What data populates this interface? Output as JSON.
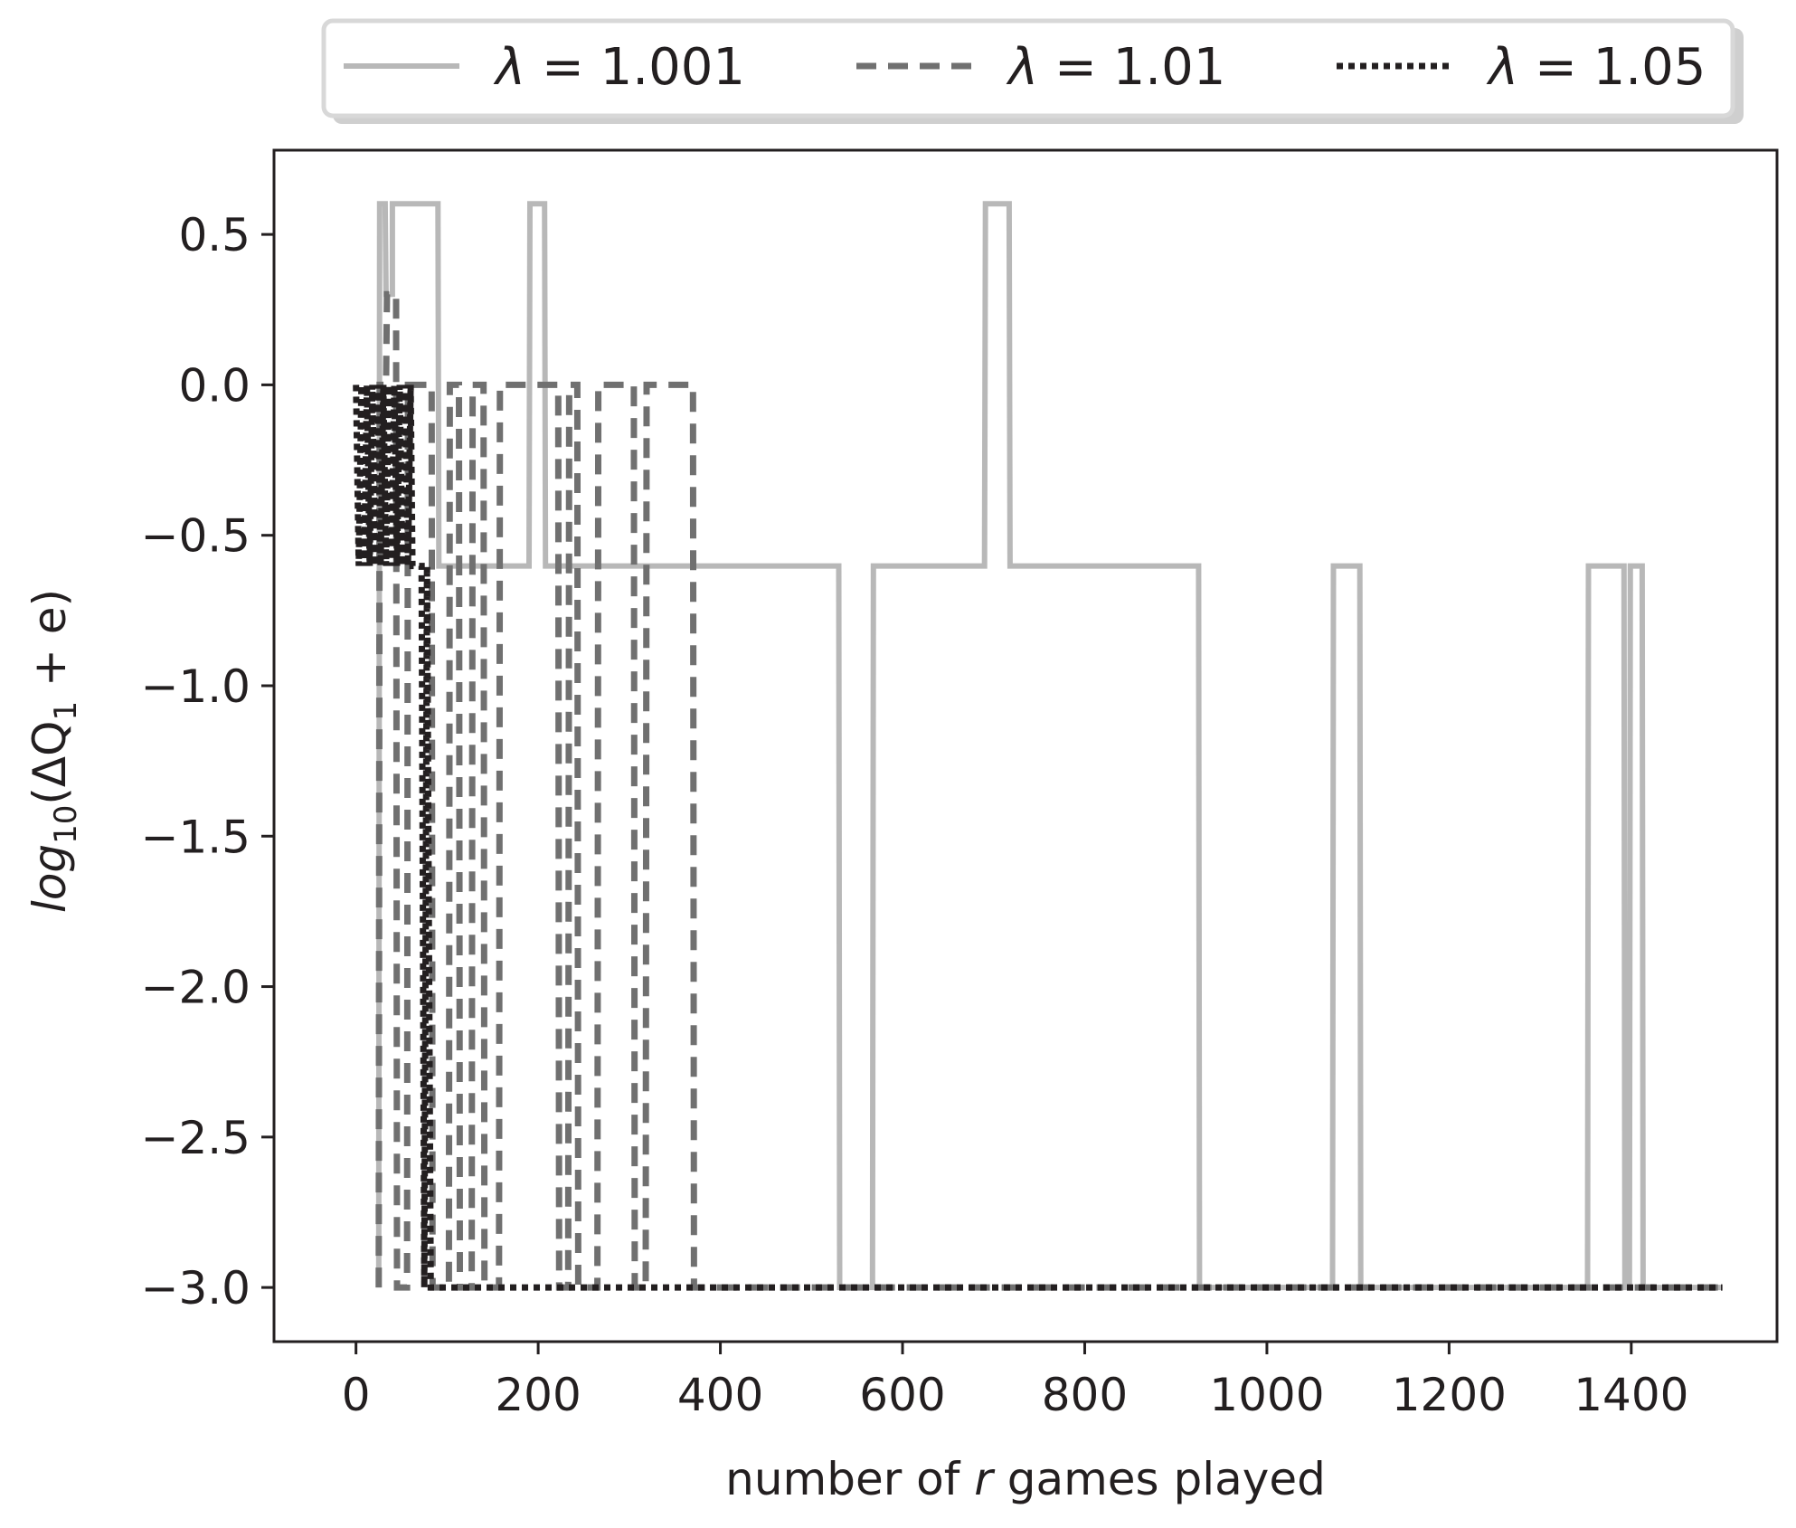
{
  "chart_data": {
    "type": "line",
    "xlabel": "number of r games played",
    "xlabel_parts": {
      "before": "number of ",
      "italic": "r",
      "after": " games played"
    },
    "ylabel": "log10(ΔQ1 + e)",
    "ylabel_parts": {
      "base": "log",
      "base_sub": "10",
      "open": "(ΔQ",
      "q_sub": "1",
      "close": " + e)"
    },
    "xlim": [
      -90,
      1560
    ],
    "ylim": [
      -3.18,
      0.78
    ],
    "xticks": [
      0,
      200,
      400,
      600,
      800,
      1000,
      1200,
      1400
    ],
    "xtick_labels": [
      "0",
      "200",
      "400",
      "600",
      "800",
      "1000",
      "1200",
      "1400"
    ],
    "yticks": [
      0.5,
      0.0,
      -0.5,
      -1.0,
      -1.5,
      -2.0,
      -2.5,
      -3.0
    ],
    "ytick_labels": [
      "0.5",
      "0.0",
      "−0.5",
      "−1.0",
      "−1.5",
      "−2.0",
      "−2.5",
      "−3.0"
    ],
    "grid": false,
    "legend_position": "top, outside plot, single row",
    "series": [
      {
        "name": "λ = 1.001",
        "label_symbol": "λ",
        "label_value": "1.001",
        "color": "#b8b8b8",
        "style": "solid",
        "x": [
          25,
          26,
          32,
          33,
          40,
          40,
          45,
          46,
          90,
          91,
          190,
          191,
          207,
          208,
          530,
          531,
          567,
          568,
          690,
          691,
          717,
          718,
          925,
          926,
          1072,
          1073,
          1102,
          1103,
          1352,
          1353,
          1392,
          1393,
          1398,
          1399,
          1412,
          1413,
          1500
        ],
        "y": [
          -3.0,
          0.602,
          0.602,
          0.301,
          0.301,
          0.602,
          0.602,
          0.602,
          0.602,
          -0.602,
          -0.602,
          0.602,
          0.602,
          -0.602,
          -0.602,
          -3.0,
          -3.0,
          -0.602,
          -0.602,
          0.602,
          0.602,
          -0.602,
          -0.602,
          -3.0,
          -3.0,
          -0.602,
          -0.602,
          -3.0,
          -3.0,
          -0.602,
          -0.602,
          -3.0,
          -3.0,
          -0.602,
          -0.602,
          -3.0,
          -3.0
        ]
      },
      {
        "name": "λ = 1.01",
        "label_symbol": "λ",
        "label_value": "1.01",
        "color": "#707070",
        "style": "dashed",
        "x": [
          25,
          26,
          33,
          34,
          44,
          45,
          56,
          57,
          83,
          84,
          102,
          103,
          113,
          114,
          127,
          128,
          140,
          141,
          157,
          158,
          222,
          223,
          233,
          234,
          243,
          244,
          265,
          266,
          305,
          306,
          318,
          319,
          370,
          371,
          1500
        ],
        "y": [
          -3.0,
          0.0,
          0.0,
          0.301,
          0.301,
          -3.0,
          -3.0,
          0.0,
          0.0,
          -3.0,
          -3.0,
          0.0,
          0.0,
          -3.0,
          -3.0,
          0.0,
          0.0,
          -3.0,
          -3.0,
          0.0,
          0.0,
          -3.0,
          -3.0,
          0.0,
          0.0,
          -3.0,
          -3.0,
          0.0,
          0.0,
          -3.0,
          -3.0,
          0.0,
          0.0,
          -3.0,
          -3.0
        ]
      },
      {
        "name": "λ = 1.05",
        "label_symbol": "λ",
        "label_value": "1.05",
        "color": "#231f20",
        "style": "dotted",
        "x": [
          0,
          3,
          6,
          9,
          12,
          15,
          18,
          21,
          24,
          27,
          30,
          33,
          36,
          39,
          42,
          45,
          48,
          51,
          54,
          57,
          60,
          62,
          72,
          75,
          78,
          82,
          87,
          1500
        ],
        "y": [
          0.0,
          -0.602,
          0.0,
          -0.602,
          0.0,
          -0.602,
          0.0,
          -0.602,
          0.0,
          -0.602,
          0.0,
          -0.602,
          0.0,
          -0.602,
          0.0,
          -0.602,
          0.0,
          -0.602,
          0.0,
          -0.602,
          0.0,
          -0.602,
          -0.602,
          -3.0,
          -0.602,
          -3.0,
          -3.0,
          -3.0
        ]
      }
    ]
  }
}
